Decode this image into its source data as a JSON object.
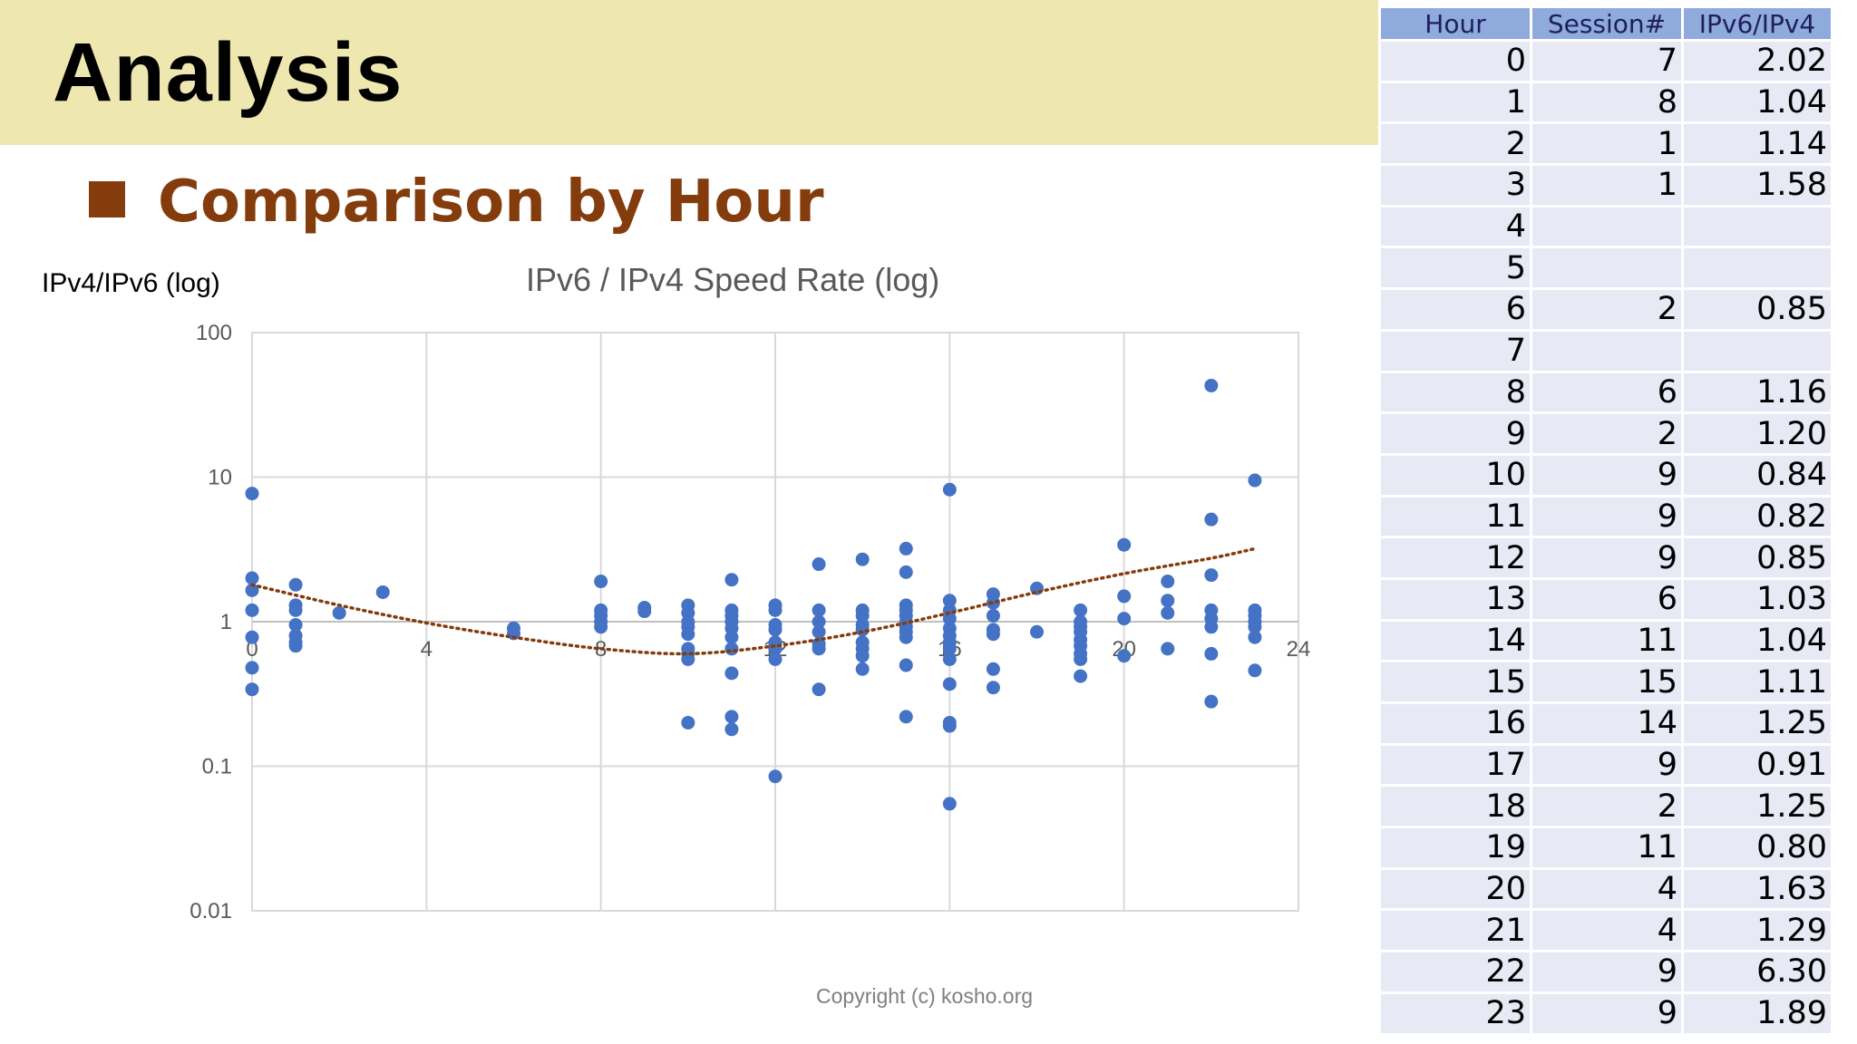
{
  "slide": {
    "title": "Analysis",
    "subtitle": "Comparison by Hour",
    "copyright": "Copyright (c) kosho.org"
  },
  "colors": {
    "banner": "#efe7b0",
    "accent": "#843c0c",
    "points": "#4472c4",
    "trend": "#843c0c",
    "table_header": "#8faadc",
    "table_cell": "#e7e9f5"
  },
  "chart_data": {
    "type": "scatter",
    "title": "IPv6 /  IPv4 Speed Rate (log)",
    "ylabel": "IPv4/IPv6 (log)",
    "xlabel": "",
    "xlim": [
      0,
      24
    ],
    "ylim": [
      0.01,
      100
    ],
    "y_scale": "log",
    "x_ticks": [
      "0",
      "4",
      "8",
      "12",
      "16",
      "20",
      "24"
    ],
    "y_ticks": [
      "100",
      "10",
      "1",
      "0.1",
      "0.01"
    ],
    "grid": true,
    "trendline": "polynomial (dotted)",
    "points": [
      [
        0,
        7.7
      ],
      [
        0,
        2.0
      ],
      [
        0,
        1.65
      ],
      [
        0,
        1.2
      ],
      [
        0,
        0.78
      ],
      [
        0,
        0.48
      ],
      [
        0,
        0.34
      ],
      [
        1,
        1.8
      ],
      [
        1,
        1.3
      ],
      [
        1,
        1.2
      ],
      [
        1,
        0.95
      ],
      [
        1,
        0.8
      ],
      [
        1,
        0.72
      ],
      [
        1,
        0.68
      ],
      [
        2,
        1.15
      ],
      [
        3,
        1.6
      ],
      [
        6,
        0.9
      ],
      [
        6,
        0.83
      ],
      [
        8,
        1.9
      ],
      [
        8,
        1.2
      ],
      [
        8,
        1.1
      ],
      [
        8,
        1.0
      ],
      [
        8,
        0.92
      ],
      [
        9,
        1.25
      ],
      [
        9,
        1.18
      ],
      [
        10,
        1.3
      ],
      [
        10,
        1.15
      ],
      [
        10,
        1.0
      ],
      [
        10,
        0.92
      ],
      [
        10,
        0.82
      ],
      [
        10,
        0.65
      ],
      [
        10,
        0.6
      ],
      [
        10,
        0.55
      ],
      [
        10,
        0.2
      ],
      [
        11,
        1.95
      ],
      [
        11,
        1.2
      ],
      [
        11,
        1.1
      ],
      [
        11,
        1.0
      ],
      [
        11,
        0.9
      ],
      [
        11,
        0.78
      ],
      [
        11,
        0.65
      ],
      [
        11,
        0.44
      ],
      [
        11,
        0.22
      ],
      [
        11,
        0.18
      ],
      [
        12,
        1.3
      ],
      [
        12,
        1.2
      ],
      [
        12,
        0.95
      ],
      [
        12,
        0.88
      ],
      [
        12,
        0.72
      ],
      [
        12,
        0.65
      ],
      [
        12,
        0.55
      ],
      [
        12,
        0.085
      ],
      [
        13,
        2.5
      ],
      [
        13,
        1.2
      ],
      [
        13,
        1.0
      ],
      [
        13,
        0.85
      ],
      [
        13,
        0.7
      ],
      [
        13,
        0.65
      ],
      [
        13,
        0.34
      ],
      [
        14,
        2.7
      ],
      [
        14,
        1.2
      ],
      [
        14,
        1.1
      ],
      [
        14,
        0.95
      ],
      [
        14,
        0.88
      ],
      [
        14,
        0.72
      ],
      [
        14,
        0.65
      ],
      [
        14,
        0.58
      ],
      [
        14,
        0.47
      ],
      [
        15,
        3.2
      ],
      [
        15,
        2.2
      ],
      [
        15,
        1.3
      ],
      [
        15,
        1.2
      ],
      [
        15,
        1.1
      ],
      [
        15,
        1.0
      ],
      [
        15,
        0.92
      ],
      [
        15,
        0.85
      ],
      [
        15,
        0.78
      ],
      [
        15,
        0.5
      ],
      [
        15,
        0.22
      ],
      [
        16,
        8.2
      ],
      [
        16,
        1.4
      ],
      [
        16,
        1.2
      ],
      [
        16,
        1.05
      ],
      [
        16,
        0.9
      ],
      [
        16,
        0.8
      ],
      [
        16,
        0.72
      ],
      [
        16,
        0.65
      ],
      [
        16,
        0.55
      ],
      [
        16,
        0.37
      ],
      [
        16,
        0.2
      ],
      [
        16,
        0.19
      ],
      [
        16,
        0.055
      ],
      [
        17,
        1.55
      ],
      [
        17,
        1.35
      ],
      [
        17,
        1.1
      ],
      [
        17,
        0.88
      ],
      [
        17,
        0.82
      ],
      [
        17,
        0.47
      ],
      [
        17,
        0.35
      ],
      [
        18,
        1.7
      ],
      [
        18,
        0.85
      ],
      [
        19,
        1.2
      ],
      [
        19,
        1.0
      ],
      [
        19,
        0.92
      ],
      [
        19,
        0.85
      ],
      [
        19,
        0.75
      ],
      [
        19,
        0.68
      ],
      [
        19,
        0.6
      ],
      [
        19,
        0.55
      ],
      [
        19,
        0.42
      ],
      [
        20,
        3.4
      ],
      [
        20,
        1.5
      ],
      [
        20,
        1.05
      ],
      [
        20,
        0.58
      ],
      [
        21,
        1.9
      ],
      [
        21,
        1.4
      ],
      [
        21,
        1.15
      ],
      [
        21,
        0.65
      ],
      [
        22,
        43
      ],
      [
        22,
        5.1
      ],
      [
        22,
        2.1
      ],
      [
        22,
        1.2
      ],
      [
        22,
        1.05
      ],
      [
        22,
        0.92
      ],
      [
        22,
        0.6
      ],
      [
        22,
        0.28
      ],
      [
        23,
        9.5
      ],
      [
        23,
        1.2
      ],
      [
        23,
        1.1
      ],
      [
        23,
        1.0
      ],
      [
        23,
        0.92
      ],
      [
        23,
        0.78
      ],
      [
        23,
        0.46
      ]
    ],
    "trend": [
      [
        0,
        1.8
      ],
      [
        2,
        1.3
      ],
      [
        4,
        0.98
      ],
      [
        6,
        0.78
      ],
      [
        8,
        0.65
      ],
      [
        10,
        0.6
      ],
      [
        12,
        0.68
      ],
      [
        14,
        0.85
      ],
      [
        16,
        1.15
      ],
      [
        18,
        1.6
      ],
      [
        20,
        2.15
      ],
      [
        22,
        2.75
      ],
      [
        23,
        3.2
      ]
    ]
  },
  "table": {
    "headers": [
      "Hour",
      "Session#",
      "IPv6/IPv4"
    ],
    "rows": [
      [
        "0",
        "7",
        "2.02"
      ],
      [
        "1",
        "8",
        "1.04"
      ],
      [
        "2",
        "1",
        "1.14"
      ],
      [
        "3",
        "1",
        "1.58"
      ],
      [
        "4",
        "",
        ""
      ],
      [
        "5",
        "",
        ""
      ],
      [
        "6",
        "2",
        "0.85"
      ],
      [
        "7",
        "",
        ""
      ],
      [
        "8",
        "6",
        "1.16"
      ],
      [
        "9",
        "2",
        "1.20"
      ],
      [
        "10",
        "9",
        "0.84"
      ],
      [
        "11",
        "9",
        "0.82"
      ],
      [
        "12",
        "9",
        "0.85"
      ],
      [
        "13",
        "6",
        "1.03"
      ],
      [
        "14",
        "11",
        "1.04"
      ],
      [
        "15",
        "15",
        "1.11"
      ],
      [
        "16",
        "14",
        "1.25"
      ],
      [
        "17",
        "9",
        "0.91"
      ],
      [
        "18",
        "2",
        "1.25"
      ],
      [
        "19",
        "11",
        "0.80"
      ],
      [
        "20",
        "4",
        "1.63"
      ],
      [
        "21",
        "4",
        "1.29"
      ],
      [
        "22",
        "9",
        "6.30"
      ],
      [
        "23",
        "9",
        "1.89"
      ]
    ]
  }
}
